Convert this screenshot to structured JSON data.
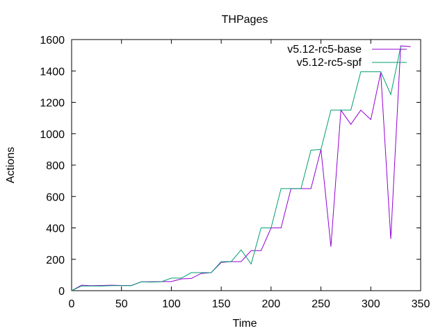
{
  "chart_data": {
    "type": "line",
    "title": "THPages",
    "xlabel": "Time",
    "ylabel": "Actions",
    "xlim": [
      0,
      350
    ],
    "ylim": [
      0,
      1600
    ],
    "xticks": [
      0,
      50,
      100,
      150,
      200,
      250,
      300,
      350
    ],
    "yticks": [
      0,
      200,
      400,
      600,
      800,
      1000,
      1200,
      1400,
      1600
    ],
    "grid": false,
    "legend_position": "top-right",
    "series": [
      {
        "name": "v5.12-rc5-base",
        "color": "#9400d3",
        "x": [
          0,
          10,
          20,
          30,
          40,
          50,
          60,
          70,
          80,
          90,
          100,
          110,
          120,
          130,
          140,
          150,
          160,
          170,
          180,
          190,
          200,
          210,
          220,
          230,
          240,
          250,
          260,
          270,
          280,
          290,
          300,
          310,
          320,
          330,
          340
        ],
        "y": [
          0,
          35,
          32,
          33,
          35,
          33,
          33,
          57,
          57,
          58,
          58,
          75,
          78,
          110,
          115,
          180,
          185,
          185,
          255,
          255,
          400,
          400,
          650,
          650,
          650,
          900,
          280,
          1150,
          1060,
          1150,
          1090,
          1390,
          330,
          1560,
          1555
        ]
      },
      {
        "name": "v5.12-rc5-spf",
        "color": "#009e73",
        "x": [
          0,
          10,
          20,
          30,
          40,
          50,
          60,
          70,
          80,
          90,
          100,
          110,
          120,
          130,
          140,
          150,
          160,
          170,
          180,
          190,
          200,
          210,
          220,
          230,
          240,
          250,
          260,
          270,
          280,
          290,
          300,
          310,
          320,
          330
        ],
        "y": [
          0,
          30,
          30,
          30,
          32,
          32,
          32,
          57,
          55,
          57,
          80,
          80,
          115,
          115,
          115,
          185,
          185,
          260,
          170,
          400,
          400,
          650,
          650,
          650,
          895,
          900,
          1150,
          1150,
          1150,
          1395,
          1395,
          1395,
          1250,
          1555
        ]
      }
    ]
  }
}
